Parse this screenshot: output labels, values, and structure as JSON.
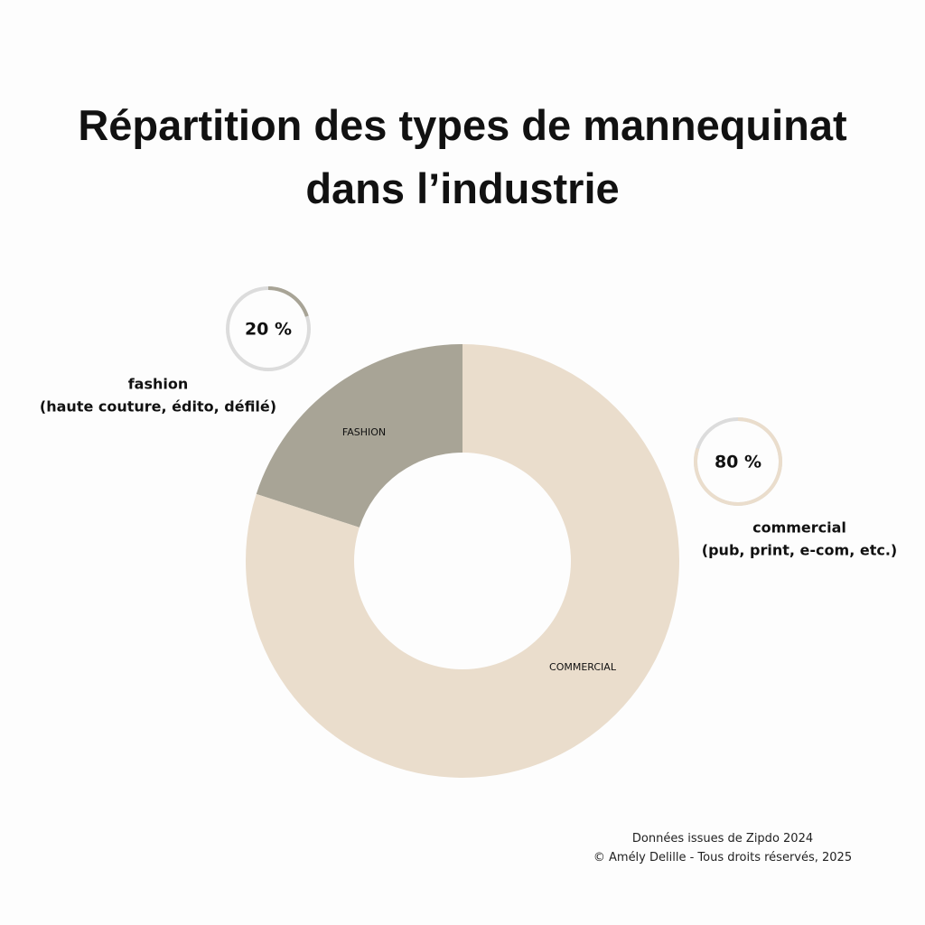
{
  "chart_data": {
    "type": "donut",
    "title": "Répartition des types de mannequinat dans l’industrie",
    "categories": [
      "FASHION",
      "COMMERCIAL"
    ],
    "values": [
      20,
      80
    ],
    "value_labels": [
      "20 %",
      "80 %"
    ],
    "colors": [
      "#a8a496",
      "#eaddcc"
    ],
    "descriptions": [
      [
        "fashion",
        "(haute couture, édito, défilé)"
      ],
      [
        "commercial",
        "(pub, print, e-com, etc.)"
      ]
    ],
    "source": "Données issues de Zipdo 2024",
    "copyright": "© Amély Delille - Tous droits réservés, 2025"
  }
}
